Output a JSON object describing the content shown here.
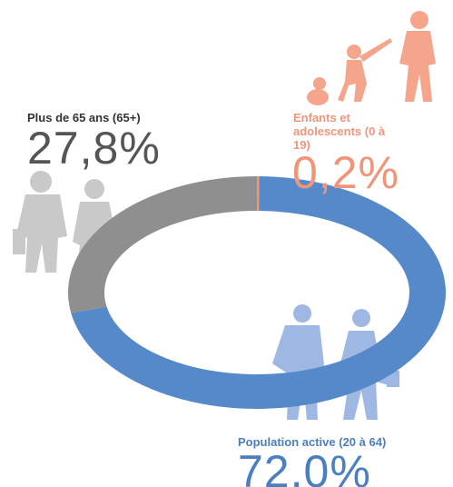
{
  "chart_data": {
    "type": "pie",
    "donut": true,
    "categories": [
      "Enfants et adolescents (0 à 19)",
      "Population active (20 à 64)",
      "Plus de 65 ans (65+)"
    ],
    "values": [
      0.2,
      72.0,
      27.8
    ],
    "value_labels": [
      "0,2%",
      "72,0%",
      "27,8%"
    ],
    "colors": [
      "#f0957a",
      "#5589c9",
      "#8f8f8f"
    ]
  }
}
